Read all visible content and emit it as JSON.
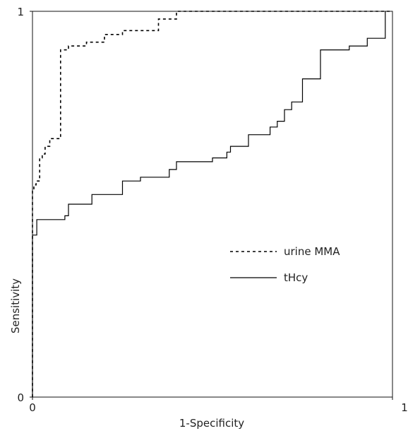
{
  "chart_data": {
    "type": "line",
    "xlabel": "1-Specificity",
    "ylabel": "Sensitivity",
    "xlim": [
      0,
      1
    ],
    "ylim": [
      0,
      1
    ],
    "x_ticks": [
      "0",
      "1"
    ],
    "y_ticks": [
      "0",
      "1"
    ],
    "grid": false,
    "legend_position": "center-right",
    "series": [
      {
        "name": "urine MMA",
        "style": "dashed",
        "color": "#000000",
        "x": [
          0,
          0,
          0.004,
          0.004,
          0.01,
          0.01,
          0.02,
          0.02,
          0.027,
          0.027,
          0.035,
          0.035,
          0.048,
          0.048,
          0.078,
          0.078,
          0.1,
          0.1,
          0.15,
          0.15,
          0.2,
          0.2,
          0.25,
          0.25,
          0.35,
          0.35,
          0.4,
          0.4,
          0.6,
          0.6,
          1
        ],
        "y": [
          0,
          0.54,
          0.54,
          0.55,
          0.55,
          0.56,
          0.56,
          0.62,
          0.62,
          0.63,
          0.63,
          0.65,
          0.65,
          0.67,
          0.67,
          0.9,
          0.9,
          0.91,
          0.91,
          0.92,
          0.92,
          0.94,
          0.94,
          0.95,
          0.95,
          0.98,
          0.98,
          1.0,
          1.0,
          1.0,
          1.0
        ]
      },
      {
        "name": "tHcy",
        "style": "solid",
        "color": "#000000",
        "x": [
          0,
          0,
          0.012,
          0.012,
          0.09,
          0.09,
          0.1,
          0.1,
          0.165,
          0.165,
          0.25,
          0.25,
          0.3,
          0.3,
          0.38,
          0.38,
          0.4,
          0.4,
          0.5,
          0.5,
          0.54,
          0.54,
          0.55,
          0.55,
          0.6,
          0.6,
          0.66,
          0.66,
          0.68,
          0.68,
          0.7,
          0.7,
          0.72,
          0.72,
          0.75,
          0.75,
          0.8,
          0.8,
          0.88,
          0.88,
          0.93,
          0.93,
          0.98,
          0.98
        ],
        "y": [
          0,
          0.42,
          0.42,
          0.46,
          0.46,
          0.47,
          0.47,
          0.5,
          0.5,
          0.525,
          0.525,
          0.56,
          0.56,
          0.57,
          0.57,
          0.59,
          0.59,
          0.61,
          0.61,
          0.62,
          0.62,
          0.635,
          0.635,
          0.65,
          0.65,
          0.68,
          0.68,
          0.7,
          0.7,
          0.715,
          0.715,
          0.745,
          0.745,
          0.765,
          0.765,
          0.825,
          0.825,
          0.9,
          0.9,
          0.91,
          0.91,
          0.93,
          0.93,
          1.0
        ]
      }
    ]
  }
}
